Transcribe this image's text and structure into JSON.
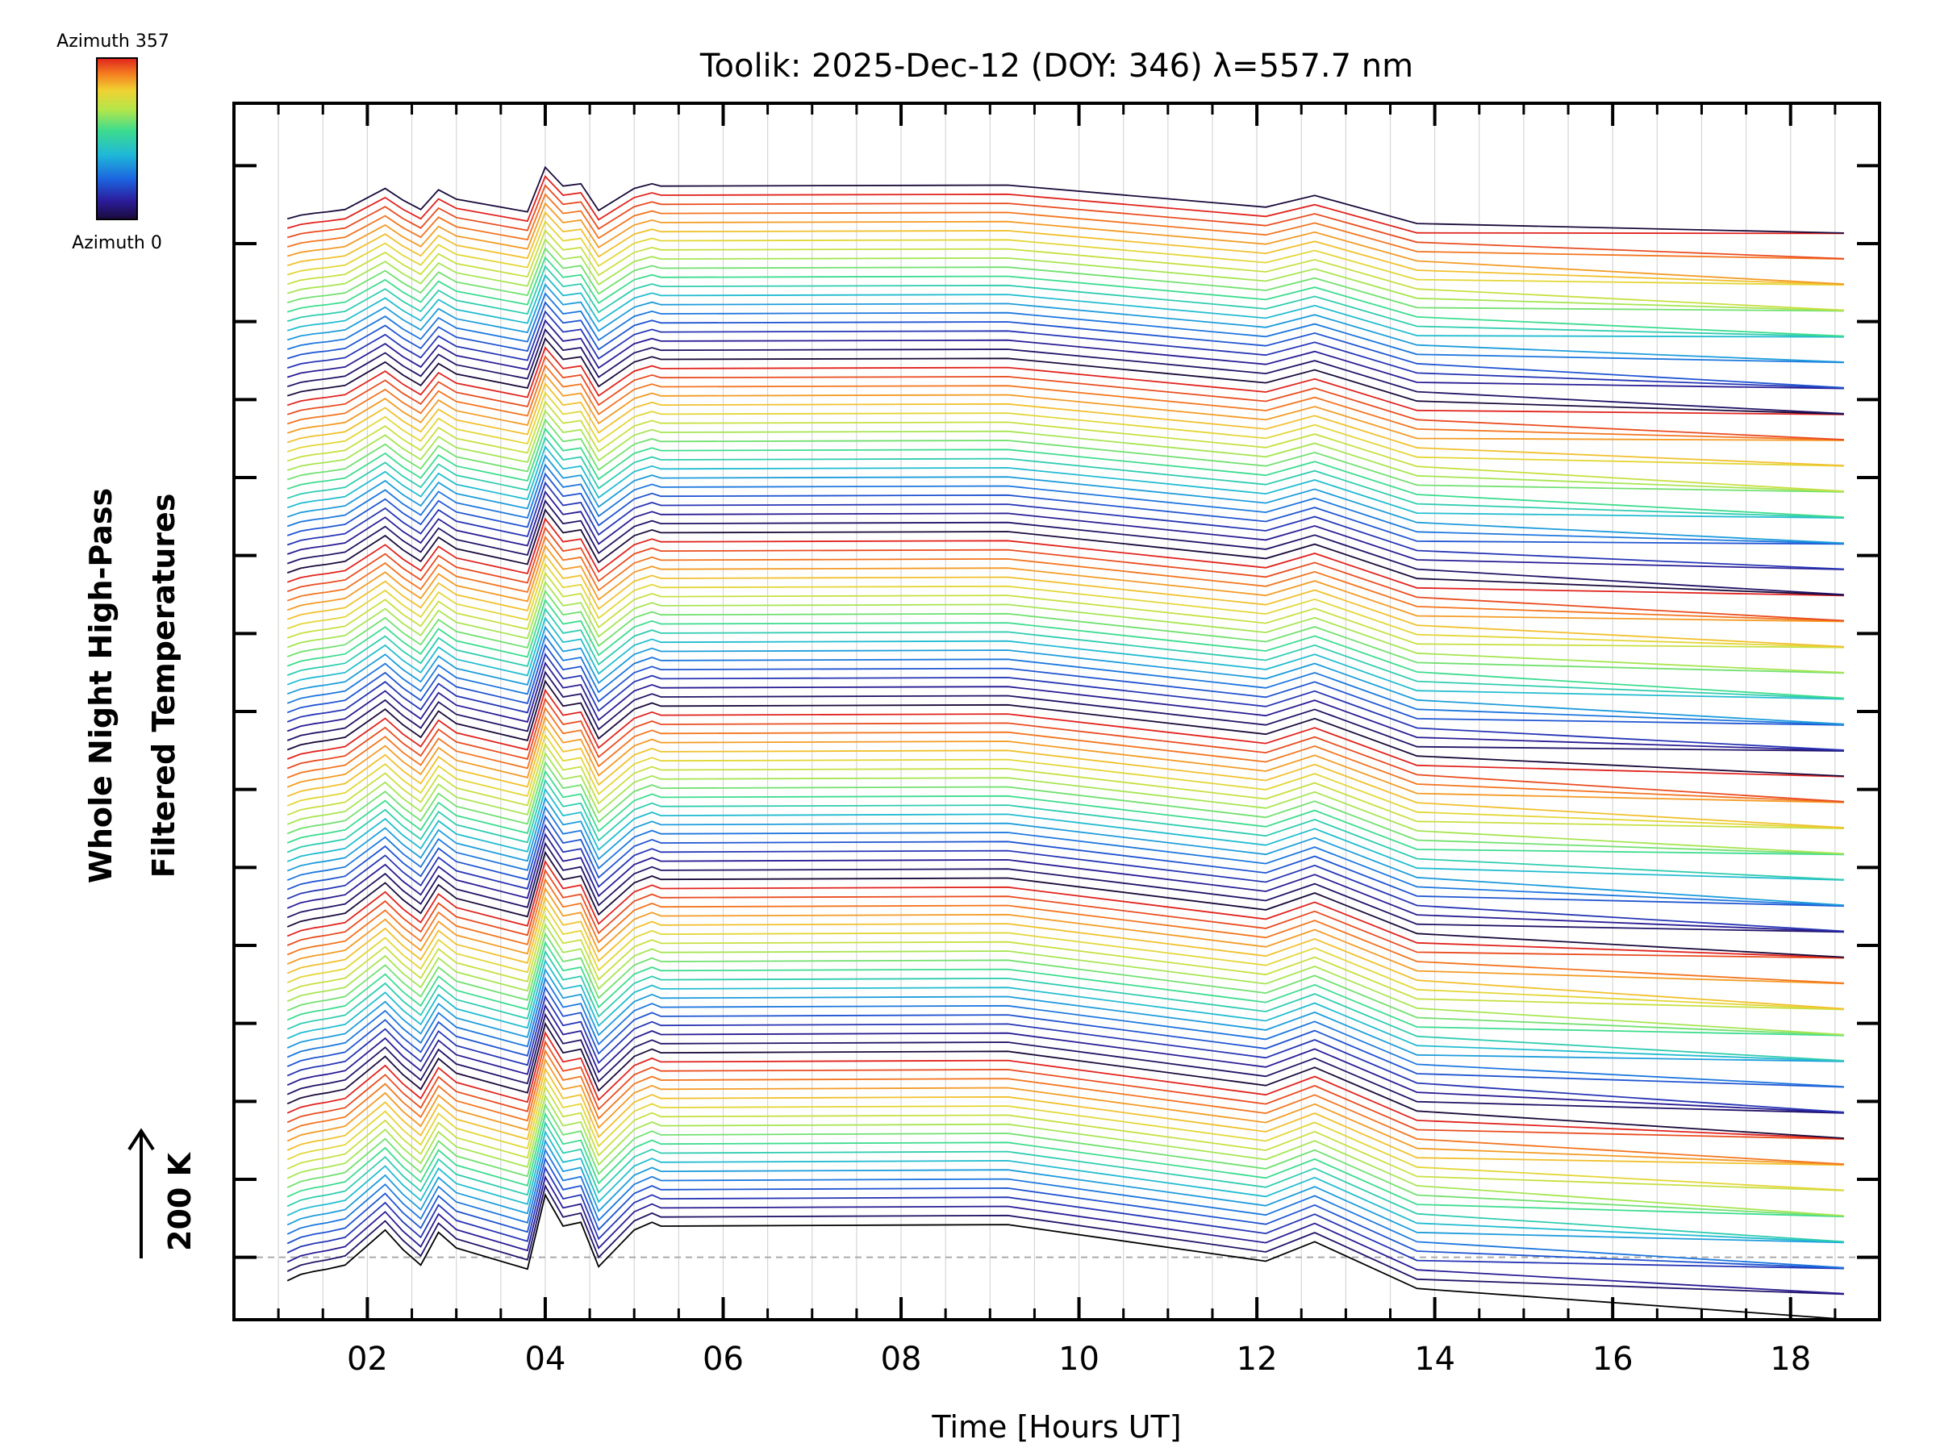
{
  "chart_data": {
    "type": "line",
    "title": "Toolik: 2025-Dec-12 (DOY: 346) λ=557.7 nm",
    "xlabel": "Time [Hours UT]",
    "ylabel_line1": "Whole Night High-Pass",
    "ylabel_line2": "Filtered Temperatures",
    "scale_bar_label": "200 K",
    "xlim": [
      0.5,
      19.0
    ],
    "ylim": [
      -0.8,
      14.8
    ],
    "x_ticks": [
      2,
      4,
      6,
      8,
      10,
      12,
      14,
      16,
      18
    ],
    "x_tick_labels": [
      "02",
      "04",
      "06",
      "08",
      "10",
      "12",
      "14",
      "16",
      "18"
    ],
    "y_major_ticks": [
      0,
      1,
      2,
      3,
      4,
      5,
      6,
      7,
      8,
      9,
      10,
      11,
      12,
      13,
      14
    ],
    "colorbar": {
      "top_label": "Azimuth 357",
      "bottom_label": "Azimuth 0",
      "colors": [
        "#1a0a3a",
        "#2b1e9e",
        "#1c64e0",
        "#1fb8d8",
        "#3ddc8e",
        "#b4e64a",
        "#f0d232",
        "#f57f20",
        "#e0231e"
      ]
    },
    "n_traces": 115,
    "offset_per_trace": 0.1184,
    "baseline_y": 0,
    "time_samples": [
      1.1,
      1.25,
      1.4,
      1.55,
      1.75,
      2.0,
      2.2,
      2.4,
      2.6,
      2.8,
      3.0,
      3.8,
      4.0,
      4.2,
      4.4,
      4.6,
      5.0,
      5.2,
      5.3,
      9.2,
      12.1,
      12.65,
      13.8,
      18.6
    ],
    "series_template": [
      -0.3,
      -0.22,
      -0.18,
      -0.15,
      -0.1,
      0.15,
      0.35,
      0.1,
      -0.1,
      0.32,
      0.12,
      -0.15,
      0.8,
      0.4,
      0.45,
      -0.12,
      0.35,
      0.45,
      0.4,
      0.42,
      -0.05,
      0.2,
      -0.4,
      -0.65
    ],
    "series_colors": [
      "#1a0a3a",
      "#2b1e9e",
      "#1c64e0",
      "#1fb8d8",
      "#3ddc8e",
      "#b4e64a",
      "#f0d232",
      "#f57f20",
      "#e0231e"
    ]
  }
}
